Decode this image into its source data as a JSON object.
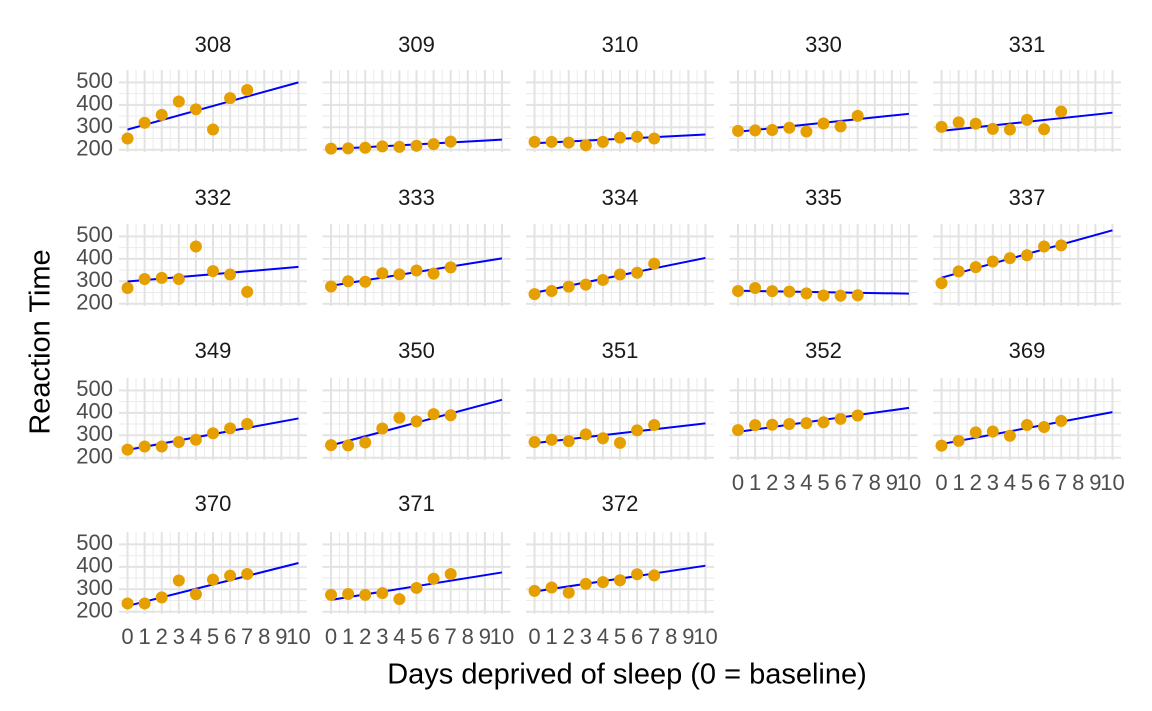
{
  "chart_data": {
    "type": "scatter",
    "xlabel": "Days deprived of sleep (0 = baseline)",
    "ylabel": "Reaction Time",
    "xlim": [
      -0.5,
      10.5
    ],
    "ylim": [
      190,
      555
    ],
    "x_ticks": [
      "0",
      "1",
      "2",
      "3",
      "4",
      "5",
      "6",
      "7",
      "8",
      "9",
      "10"
    ],
    "y_ticks": [
      200,
      300,
      400,
      500
    ],
    "grid": true,
    "point_color": "#E69F00",
    "line_color": "#0000FF",
    "x": [
      0,
      1,
      2,
      3,
      4,
      5,
      6,
      7
    ],
    "panels": [
      {
        "subject": "308",
        "values": [
          250,
          320,
          355,
          415,
          380,
          290,
          430,
          466
        ],
        "fit": [
          290,
          500
        ]
      },
      {
        "subject": "309",
        "values": [
          205,
          206,
          209,
          215,
          213,
          218,
          225,
          236
        ],
        "fit": [
          203,
          245
        ]
      },
      {
        "subject": "310",
        "values": [
          235,
          235,
          232,
          220,
          235,
          254,
          258,
          250
        ],
        "fit": [
          229,
          268
        ]
      },
      {
        "subject": "330",
        "values": [
          284,
          286,
          288,
          298,
          281,
          317,
          304,
          351
        ],
        "fit": [
          280,
          360
        ]
      },
      {
        "subject": "331",
        "values": [
          302,
          322,
          316,
          293,
          290,
          333,
          291,
          370
        ],
        "fit": [
          284,
          365
        ]
      },
      {
        "subject": "332",
        "values": [
          270,
          310,
          315,
          310,
          455,
          345,
          330,
          253
        ],
        "fit": [
          299,
          364
        ]
      },
      {
        "subject": "333",
        "values": [
          277,
          300,
          298,
          336,
          331,
          348,
          334,
          362
        ],
        "fit": [
          280,
          402
        ]
      },
      {
        "subject": "334",
        "values": [
          243,
          257,
          276,
          285,
          306,
          330,
          338,
          378
        ],
        "fit": [
          249,
          404
        ]
      },
      {
        "subject": "335",
        "values": [
          257,
          270,
          256,
          254,
          246,
          237,
          236,
          238
        ],
        "fit": [
          258,
          245
        ]
      },
      {
        "subject": "337",
        "values": [
          292,
          344,
          363,
          388,
          403,
          416,
          455,
          460
        ],
        "fit": [
          316,
          527
        ]
      },
      {
        "subject": "349",
        "values": [
          236,
          250,
          250,
          270,
          280,
          309,
          331,
          350
        ],
        "fit": [
          235,
          375
        ]
      },
      {
        "subject": "350",
        "values": [
          256,
          255,
          268,
          330,
          378,
          362,
          394,
          389
        ],
        "fit": [
          255,
          458
        ]
      },
      {
        "subject": "351",
        "values": [
          270,
          280,
          274,
          304,
          287,
          266,
          322,
          346
        ],
        "fit": [
          265,
          353
        ]
      },
      {
        "subject": "352",
        "values": [
          323,
          345,
          347,
          350,
          354,
          358,
          373,
          388
        ],
        "fit": [
          315,
          422
        ]
      },
      {
        "subject": "369",
        "values": [
          254,
          275,
          313,
          317,
          298,
          346,
          337,
          364
        ],
        "fit": [
          261,
          403
        ]
      },
      {
        "subject": "370",
        "values": [
          237,
          237,
          264,
          339,
          278,
          343,
          361,
          368
        ],
        "fit": [
          226,
          417
        ]
      },
      {
        "subject": "371",
        "values": [
          275,
          279,
          275,
          283,
          256,
          306,
          347,
          368
        ],
        "fit": [
          253,
          375
        ]
      },
      {
        "subject": "372",
        "values": [
          293,
          308,
          285,
          324,
          332,
          340,
          367,
          362
        ],
        "fit": [
          290,
          405
        ]
      }
    ]
  }
}
